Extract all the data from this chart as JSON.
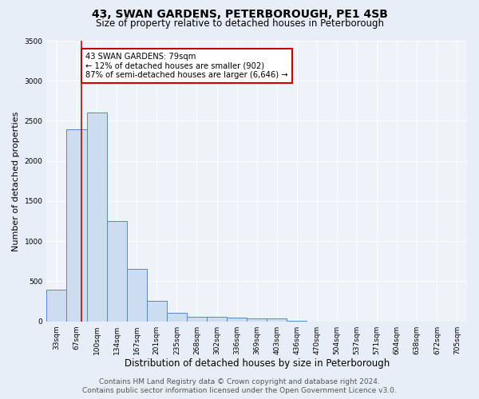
{
  "title": "43, SWAN GARDENS, PETERBOROUGH, PE1 4SB",
  "subtitle": "Size of property relative to detached houses in Peterborough",
  "xlabel": "Distribution of detached houses by size in Peterborough",
  "ylabel": "Number of detached properties",
  "categories": [
    "33sqm",
    "67sqm",
    "100sqm",
    "134sqm",
    "167sqm",
    "201sqm",
    "235sqm",
    "268sqm",
    "302sqm",
    "336sqm",
    "369sqm",
    "403sqm",
    "436sqm",
    "470sqm",
    "504sqm",
    "537sqm",
    "571sqm",
    "604sqm",
    "638sqm",
    "672sqm",
    "705sqm"
  ],
  "values": [
    400,
    2400,
    2600,
    1250,
    650,
    260,
    110,
    60,
    55,
    50,
    35,
    35,
    5,
    0,
    0,
    0,
    0,
    0,
    0,
    0,
    0
  ],
  "bar_color": "#ccddf0",
  "bar_edge_color": "#5588cc",
  "bar_edge_width": 0.7,
  "red_line_x": 1.24,
  "red_line_color": "#cc0000",
  "ylim": [
    0,
    3500
  ],
  "yticks": [
    0,
    500,
    1000,
    1500,
    2000,
    2500,
    3000,
    3500
  ],
  "annotation_text": "43 SWAN GARDENS: 79sqm\n← 12% of detached houses are smaller (902)\n87% of semi-detached houses are larger (6,646) →",
  "annotation_box_color": "white",
  "annotation_box_edge_color": "#cc0000",
  "footer_line1": "Contains HM Land Registry data © Crown copyright and database right 2024.",
  "footer_line2": "Contains public sector information licensed under the Open Government Licence v3.0.",
  "bg_color": "#e8eef8",
  "plot_bg_color": "#eef3fa",
  "title_fontsize": 10,
  "subtitle_fontsize": 8.5,
  "xlabel_fontsize": 8.5,
  "ylabel_fontsize": 8,
  "footer_fontsize": 6.5,
  "tick_fontsize": 6.5,
  "annotation_fontsize": 7.2
}
